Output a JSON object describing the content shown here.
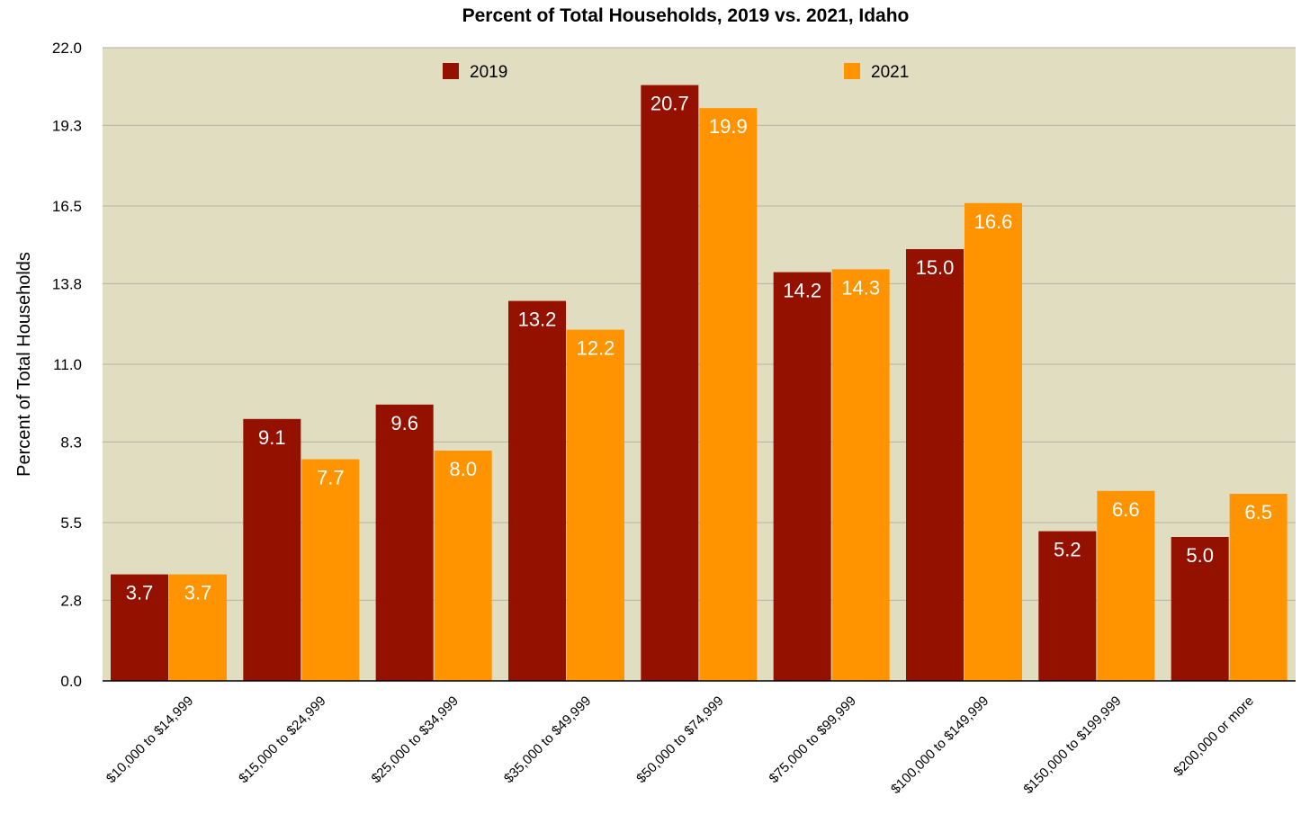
{
  "chart_data": {
    "type": "bar",
    "title": "Percent of Total Households, 2019 vs. 2021, Idaho",
    "xlabel": "",
    "ylabel": "Percent of Total Households",
    "ylim": [
      0,
      22
    ],
    "yticks": [
      "0.0",
      "2.8",
      "5.5",
      "8.3",
      "11.0",
      "13.8",
      "16.5",
      "19.3",
      "22.0"
    ],
    "grid": true,
    "legend_position": "top",
    "plot_background": "#e0ddc0",
    "categories": [
      "$10,000 to $14,999",
      "$15,000 to $24,999",
      "$25,000 to $34,999",
      "$35,000 to $49,999",
      "$50,000 to $74,999",
      "$75,000 to $99,999",
      "$100,000 to $149,999",
      "$150,000 to $199,999",
      "$200,000 or more"
    ],
    "series": [
      {
        "name": "2019",
        "color": "#941100",
        "values": [
          3.7,
          9.1,
          9.6,
          13.2,
          20.7,
          14.2,
          15.0,
          5.2,
          5.0
        ],
        "labels": [
          "3.7",
          "9.1",
          "9.6",
          "13.2",
          "20.7",
          "14.2",
          "15.0",
          "5.2",
          "5.0"
        ]
      },
      {
        "name": "2021",
        "color": "#ff9300",
        "values": [
          3.7,
          7.7,
          8.0,
          12.2,
          19.9,
          14.3,
          16.6,
          6.6,
          6.5
        ],
        "labels": [
          "3.7",
          "7.7",
          "8.0",
          "12.2",
          "19.9",
          "14.3",
          "16.6",
          "6.6",
          "6.5"
        ]
      }
    ]
  }
}
